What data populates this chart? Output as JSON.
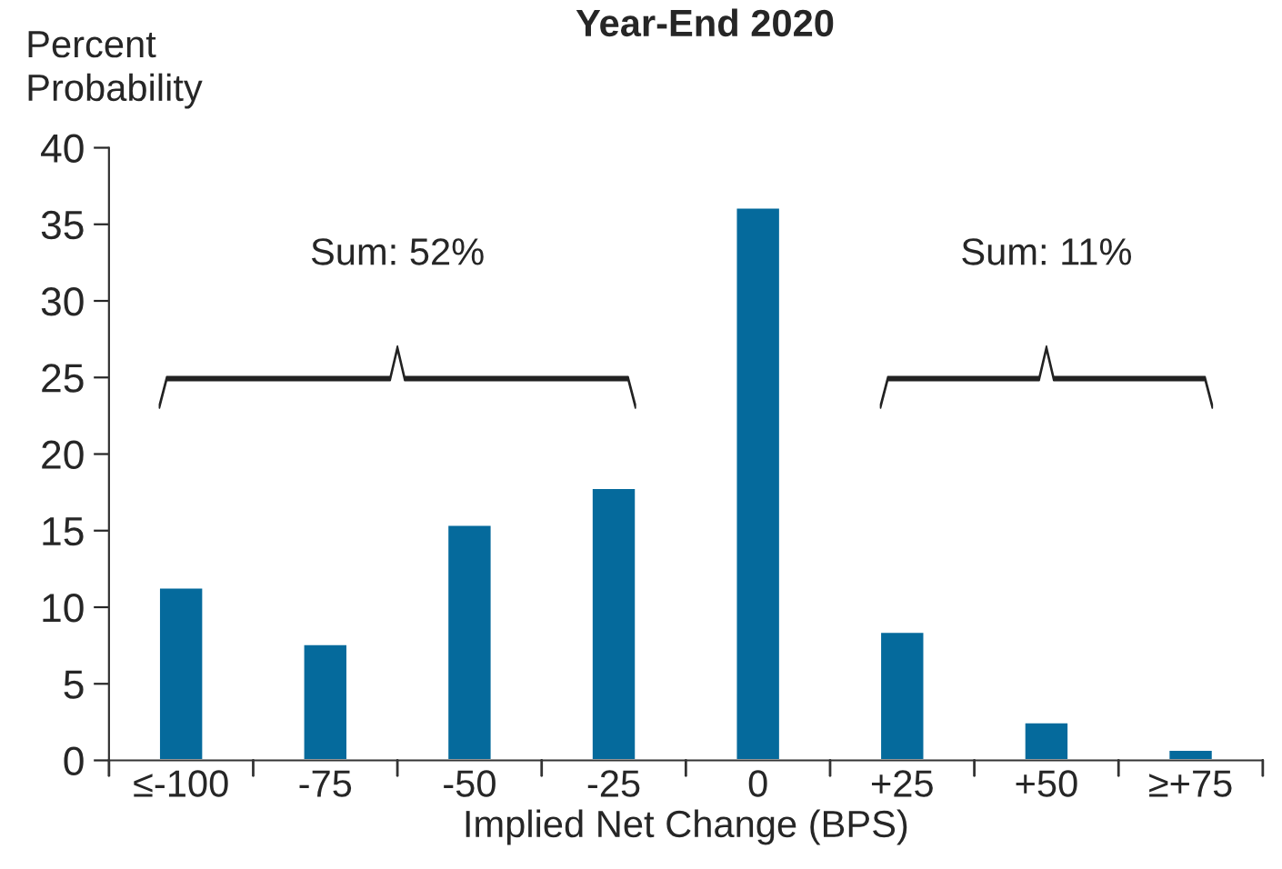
{
  "chart_data": {
    "type": "bar",
    "title": "Year-End 2020",
    "ylabel": "Percent\nProbability",
    "xlabel": "Implied Net Change (BPS)",
    "categories": [
      "≤-100",
      "-75",
      "-50",
      "-25",
      "0",
      "+25",
      "+50",
      "≥+75"
    ],
    "values": [
      11.3,
      7.6,
      15.4,
      17.8,
      36.1,
      8.4,
      2.5,
      0.7
    ],
    "color": "#056a9c",
    "ylim": [
      0,
      40
    ],
    "yticks": [
      0,
      5,
      10,
      15,
      20,
      25,
      30,
      35,
      40
    ],
    "grid": false,
    "annotations": [
      "Sum: 52%",
      "Sum: 11%"
    ]
  }
}
